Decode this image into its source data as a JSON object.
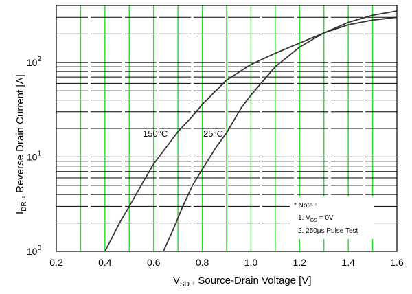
{
  "chart_data": {
    "type": "line",
    "title": "",
    "xlabel": {
      "symbol": "V",
      "subscript": "SD",
      "text": " , Source-Drain Voltage  [V]"
    },
    "ylabel": {
      "symbol": "I",
      "subscript": "DR",
      "text": " , Reverse Drain Current  [A]"
    },
    "xlim": [
      0.2,
      1.6
    ],
    "ylim": [
      1,
      400
    ],
    "yscale": "log",
    "x_ticks": [
      "0.2",
      "0.4",
      "0.6",
      "0.8",
      "1.0",
      "1.2",
      "1.4",
      "1.6"
    ],
    "y_ticks": [
      {
        "base": "10",
        "exp": "0",
        "value": 1
      },
      {
        "base": "10",
        "exp": "1",
        "value": 10
      },
      {
        "base": "10",
        "exp": "2",
        "value": 100
      }
    ],
    "grid": true,
    "series": [
      {
        "name": "150°C",
        "color": "#333333",
        "x": [
          0.4,
          0.46,
          0.5,
          0.56,
          0.6,
          0.66,
          0.7,
          0.76,
          0.8,
          0.9,
          1.0,
          1.1,
          1.2,
          1.3,
          1.4,
          1.5,
          1.6
        ],
        "y": [
          1.0,
          2.0,
          3.0,
          5.6,
          8.4,
          13.5,
          18.5,
          27,
          36,
          65,
          95,
          125,
          160,
          205,
          250,
          280,
          300
        ]
      },
      {
        "name": "25°C",
        "color": "#333333",
        "x": [
          0.64,
          0.68,
          0.72,
          0.76,
          0.8,
          0.86,
          0.9,
          0.96,
          1.0,
          1.1,
          1.2,
          1.3,
          1.4,
          1.5,
          1.6
        ],
        "y": [
          1.0,
          1.7,
          3.0,
          5.0,
          7.4,
          13,
          18,
          33,
          45,
          90,
          145,
          205,
          265,
          315,
          350
        ]
      }
    ],
    "annotations": {
      "label_150": "150°C",
      "label_25": "25°C",
      "note_title": "* Note :",
      "note_line1_prefix": "1. V",
      "note_line1_sub": "GS",
      "note_line1_suffix": " = 0V",
      "note_line2": "2. 250μs Pulse Test"
    },
    "colors": {
      "vertical_grid": "#33dd33",
      "horizontal_grid": "#000000",
      "curve": "#333333"
    }
  }
}
